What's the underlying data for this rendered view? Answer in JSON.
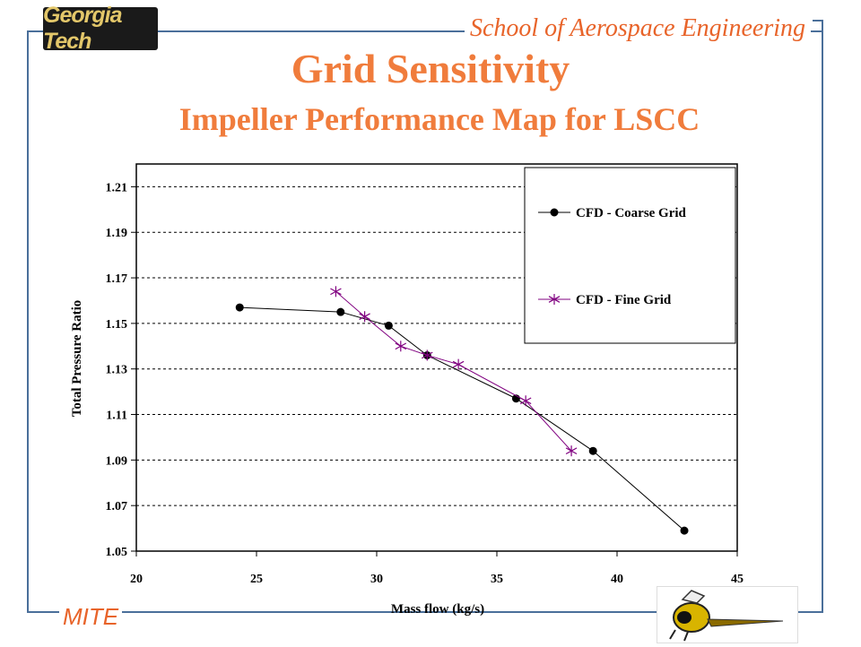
{
  "header": {
    "logo_text": "Georgia Tech",
    "school": "School of Aerospace Engineering",
    "title": "Grid Sensitivity",
    "subtitle": "Impeller Performance Map for LSCC"
  },
  "footer": {
    "mite": "MITE",
    "mascot_icon": "yellow-jacket-mascot-icon"
  },
  "colors": {
    "title": "#f07c3c",
    "frame": "#4a6f9a",
    "coarse": "#000000",
    "fine": "#800080"
  },
  "chart_data": {
    "type": "line",
    "xlabel": "Mass flow (kg/s)",
    "ylabel": "Total Pressure Ratio",
    "xlim": [
      20,
      45
    ],
    "ylim": [
      1.05,
      1.22
    ],
    "x_ticks": [
      "20",
      "25",
      "30",
      "35",
      "40",
      "45"
    ],
    "y_ticks": [
      "1.05",
      "1.07",
      "1.09",
      "1.11",
      "1.13",
      "1.15",
      "1.17",
      "1.19",
      "1.21"
    ],
    "grid": "horizontal dashed",
    "legend_position": "top-right",
    "series": [
      {
        "name": "CFD - Coarse Grid",
        "marker": "circle",
        "points": [
          [
            24.3,
            1.157
          ],
          [
            28.5,
            1.155
          ],
          [
            30.5,
            1.149
          ],
          [
            32.1,
            1.136
          ],
          [
            35.8,
            1.117
          ],
          [
            39.0,
            1.094
          ],
          [
            42.8,
            1.059
          ]
        ]
      },
      {
        "name": "CFD - Fine Grid",
        "marker": "asterisk",
        "points": [
          [
            28.3,
            1.164
          ],
          [
            29.5,
            1.153
          ],
          [
            31.0,
            1.14
          ],
          [
            32.1,
            1.136
          ],
          [
            33.4,
            1.132
          ],
          [
            36.2,
            1.116
          ],
          [
            38.1,
            1.094
          ]
        ]
      }
    ]
  }
}
